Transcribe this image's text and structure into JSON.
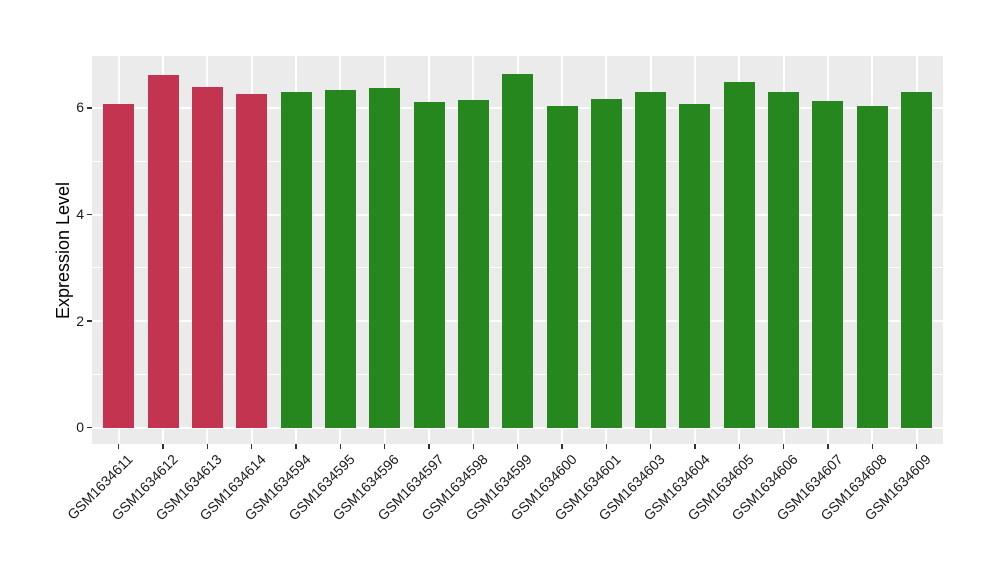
{
  "chart_data": {
    "type": "bar",
    "title": "",
    "xlabel": "",
    "ylabel": "Expression Level",
    "categories": [
      "GSM1634611",
      "GSM1634612",
      "GSM1634613",
      "GSM1634614",
      "GSM1634594",
      "GSM1634595",
      "GSM1634596",
      "GSM1634597",
      "GSM1634598",
      "GSM1634599",
      "GSM1634600",
      "GSM1634601",
      "GSM1634603",
      "GSM1634604",
      "GSM1634605",
      "GSM1634606",
      "GSM1634607",
      "GSM1634608",
      "GSM1634609"
    ],
    "values": [
      6.07,
      6.62,
      6.39,
      6.27,
      6.3,
      6.33,
      6.37,
      6.12,
      6.15,
      6.63,
      6.04,
      6.17,
      6.29,
      6.07,
      6.49,
      6.3,
      6.13,
      6.04,
      6.29
    ],
    "bar_groups": [
      "red",
      "red",
      "red",
      "red",
      "green",
      "green",
      "green",
      "green",
      "green",
      "green",
      "green",
      "green",
      "green",
      "green",
      "green",
      "green",
      "green",
      "green",
      "green"
    ],
    "group_colors": {
      "red": "#C33450",
      "green": "#26871F"
    },
    "y_ticks": [
      0,
      2,
      4,
      6
    ],
    "y_tick_labels": [
      "0",
      "2",
      "4",
      "6"
    ],
    "y_minor_ticks": [
      1,
      3,
      5
    ],
    "ylim": [
      0,
      6.96
    ],
    "grid": "on",
    "legend": "none",
    "panel_background": "#EBEBEB",
    "gridline_color": "#FFFFFF",
    "x_tick_rotation_deg": 45
  }
}
